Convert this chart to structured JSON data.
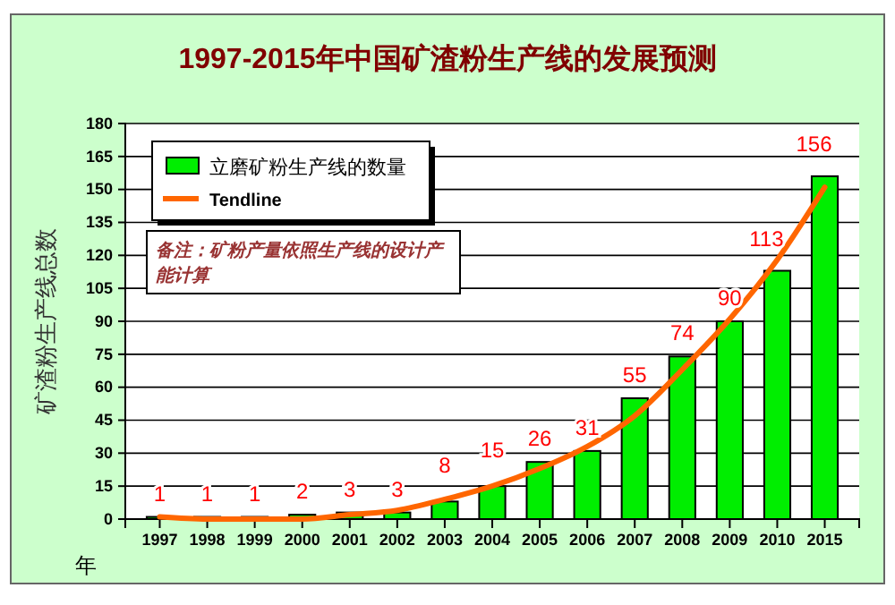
{
  "chart_data": {
    "type": "bar",
    "title": "1997-2015年中国矿渣粉生产线的发展预测",
    "ylabel": "矿渣粉生产线总数",
    "xlabel": "年",
    "categories": [
      "1997",
      "1998",
      "1999",
      "2000",
      "2001",
      "2002",
      "2003",
      "2004",
      "2005",
      "2006",
      "2007",
      "2008",
      "2009",
      "2010",
      "2015"
    ],
    "series": [
      {
        "name": "立磨矿粉生产线的数量",
        "color": "#00ee00",
        "values": [
          1,
          1,
          1,
          2,
          3,
          3,
          8,
          15,
          26,
          31,
          55,
          74,
          90,
          113,
          156
        ],
        "value_labels": [
          "1",
          "1",
          "1",
          "2",
          "3",
          "3",
          "8",
          "15",
          "26",
          "31",
          "55",
          "74",
          "90",
          "113",
          "156"
        ]
      },
      {
        "name": "Tendline",
        "type": "line",
        "color": "#ff6600",
        "values": [
          1,
          0,
          0,
          0,
          2,
          4,
          9,
          15,
          23,
          33,
          47,
          68,
          91,
          118,
          151
        ]
      }
    ],
    "ylim": [
      0,
      180
    ],
    "yticks": [
      0,
      15,
      30,
      45,
      60,
      75,
      90,
      105,
      120,
      135,
      150,
      165,
      180
    ],
    "grid": "y",
    "legend": "top left",
    "annotations": [
      "备注：矿粉产量依照生产线的设计产能计算"
    ]
  }
}
